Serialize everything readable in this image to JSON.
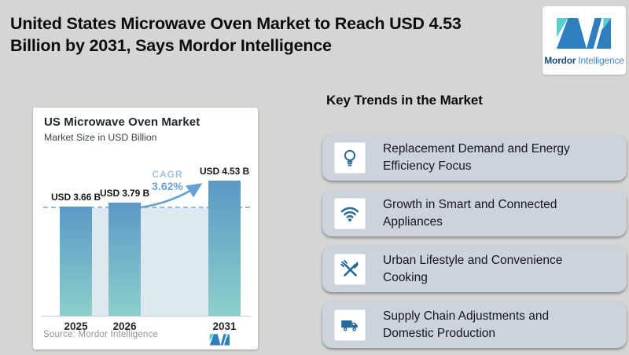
{
  "page_title": {
    "line1": "United States Microwave Oven Market to Reach USD 4.53",
    "line2": "Billion by 2031, Says Mordor Intelligence"
  },
  "logo": {
    "brand_primary": "Mordor",
    "brand_secondary": "Intelligence"
  },
  "chart": {
    "title": "US Microwave Oven Market",
    "subtitle": "Market Size in USD Billion",
    "cagr_label": "CAGR",
    "cagr_value": "3.62%",
    "source": "Source: Mordor Intelligence"
  },
  "chart_data": {
    "type": "bar",
    "title": "US Microwave Oven Market",
    "subtitle": "Market Size in USD Billion",
    "categories": [
      "2025",
      "2026",
      "2031"
    ],
    "values": [
      3.66,
      3.79,
      4.53
    ],
    "bar_labels": [
      "USD 3.66 B",
      "USD 3.79 B",
      "USD 4.53 B"
    ],
    "cagr_annotation": "CAGR 3.62%",
    "ylim": [
      0,
      4.53
    ],
    "reference_line_value": 3.66,
    "grid": false,
    "legend": false,
    "source": "Source: Mordor Intelligence"
  },
  "trends": {
    "heading": "Key Trends in the Market",
    "items": [
      {
        "icon": "lightbulb-icon",
        "text": "Replacement Demand and Energy Efficiency Focus"
      },
      {
        "icon": "wifi-icon",
        "text": "Growth in Smart and Connected Appliances"
      },
      {
        "icon": "utensils-icon",
        "text": "Urban Lifestyle and Convenience Cooking"
      },
      {
        "icon": "truck-icon",
        "text": "Supply Chain Adjustments and Domestic Production"
      }
    ]
  },
  "colors": {
    "accent_blue": "#2a6b99",
    "bar_top": "#5b99c6",
    "bar_bottom": "#8ccfcb",
    "logo_blue": "#2e7ec0",
    "logo_teal": "#5ad0ce",
    "arrow_blue": "#66a0d4"
  }
}
